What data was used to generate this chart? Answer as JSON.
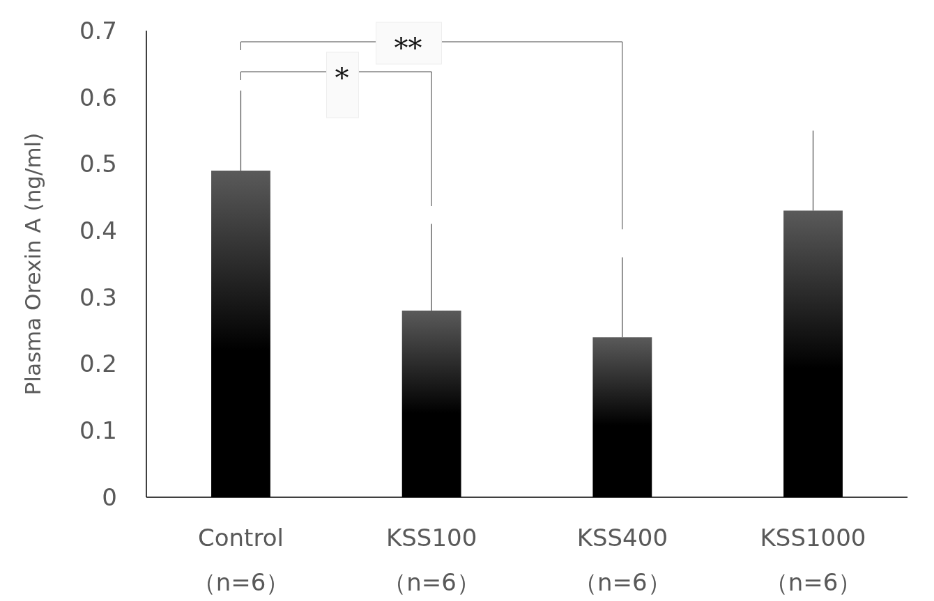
{
  "chart_data": {
    "type": "bar",
    "ylabel": "Plasma Orexin A (ng/ml)",
    "categories": [
      "Control\n（n=6）",
      "KSS100\n（n=6）",
      "KSS400\n（n=6）",
      "KSS1000\n（n=6）"
    ],
    "values": [
      0.49,
      0.28,
      0.24,
      0.43
    ],
    "errors": [
      [
        0.49,
        0.61
      ],
      [
        0.28,
        0.41
      ],
      [
        0.24,
        0.36
      ],
      [
        0.43,
        0.55
      ]
    ],
    "color": "#5a5a5a",
    "ylim": [
      0,
      0.7
    ],
    "yticks": [
      0,
      0.1,
      0.2,
      0.3,
      0.4,
      0.5,
      0.6,
      0.7
    ],
    "annotations": [
      "*",
      "**"
    ]
  }
}
